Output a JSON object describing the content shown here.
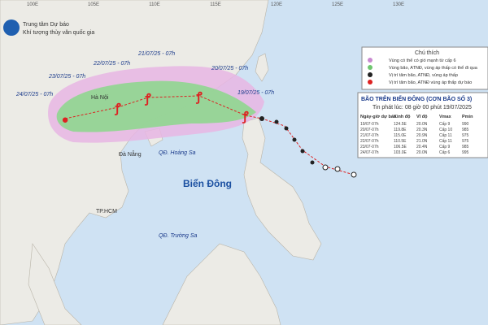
{
  "header": {
    "line1": "Trung tâm Dự báo",
    "line2": "Khí tượng thủy văn quốc gia"
  },
  "longitudes": [
    "100E",
    "105E",
    "110E",
    "115E",
    "120E",
    "125E",
    "130E"
  ],
  "places": {
    "sea": "Biển Đông",
    "paracel": "QĐ. Hoàng Sa",
    "spratly": "QĐ. Trường Sa",
    "hanoi": "Hà Nội",
    "danang": "Đà Nẵng",
    "south": "TP.HCM"
  },
  "times": [
    "24/07/25 - 07h",
    "23/07/25 - 07h",
    "22/07/25 - 07h",
    "21/07/25 - 07h",
    "20/07/25 - 07h",
    "19/07/25 - 07h"
  ],
  "legend": {
    "title": "Chú thích",
    "items": [
      "Vùng có thể có gió mạnh từ cấp 6",
      "Vùng bão, ATNĐ, vùng áp thấp có thể đi qua",
      "Vị trí tâm bão, ATNĐ, vùng áp thấp",
      "Vị trí tâm bão, ATNĐ vùng áp thấp dự báo"
    ]
  },
  "info": {
    "title": "BÃO TRÊN BIỂN ĐÔNG (CƠN BÃO SỐ 3)",
    "issued": "Tin phát lúc: 08 giờ 00 phút 19/07/2025",
    "columns": [
      "Ngày-giờ dự báo",
      "Kinh độ",
      "Vĩ độ",
      "Vmax",
      "Pmin"
    ],
    "rows": [
      [
        "19/07-07h",
        "124.5E",
        "20.0N",
        "Cấp 9",
        "990"
      ],
      [
        "20/07-07h",
        "119.8E",
        "20.3N",
        "Cấp 10",
        "985"
      ],
      [
        "21/07-07h",
        "115.0E",
        "20.9N",
        "Cấp 11",
        "975"
      ],
      [
        "22/07-07h",
        "110.5E",
        "21.0N",
        "Cấp 11",
        "975"
      ],
      [
        "23/07-07h",
        "106.5E",
        "20.4N",
        "Cấp 9",
        "985"
      ],
      [
        "24/07-07h",
        "103.0E",
        "20.0N",
        "Cấp 6",
        "995"
      ]
    ]
  }
}
